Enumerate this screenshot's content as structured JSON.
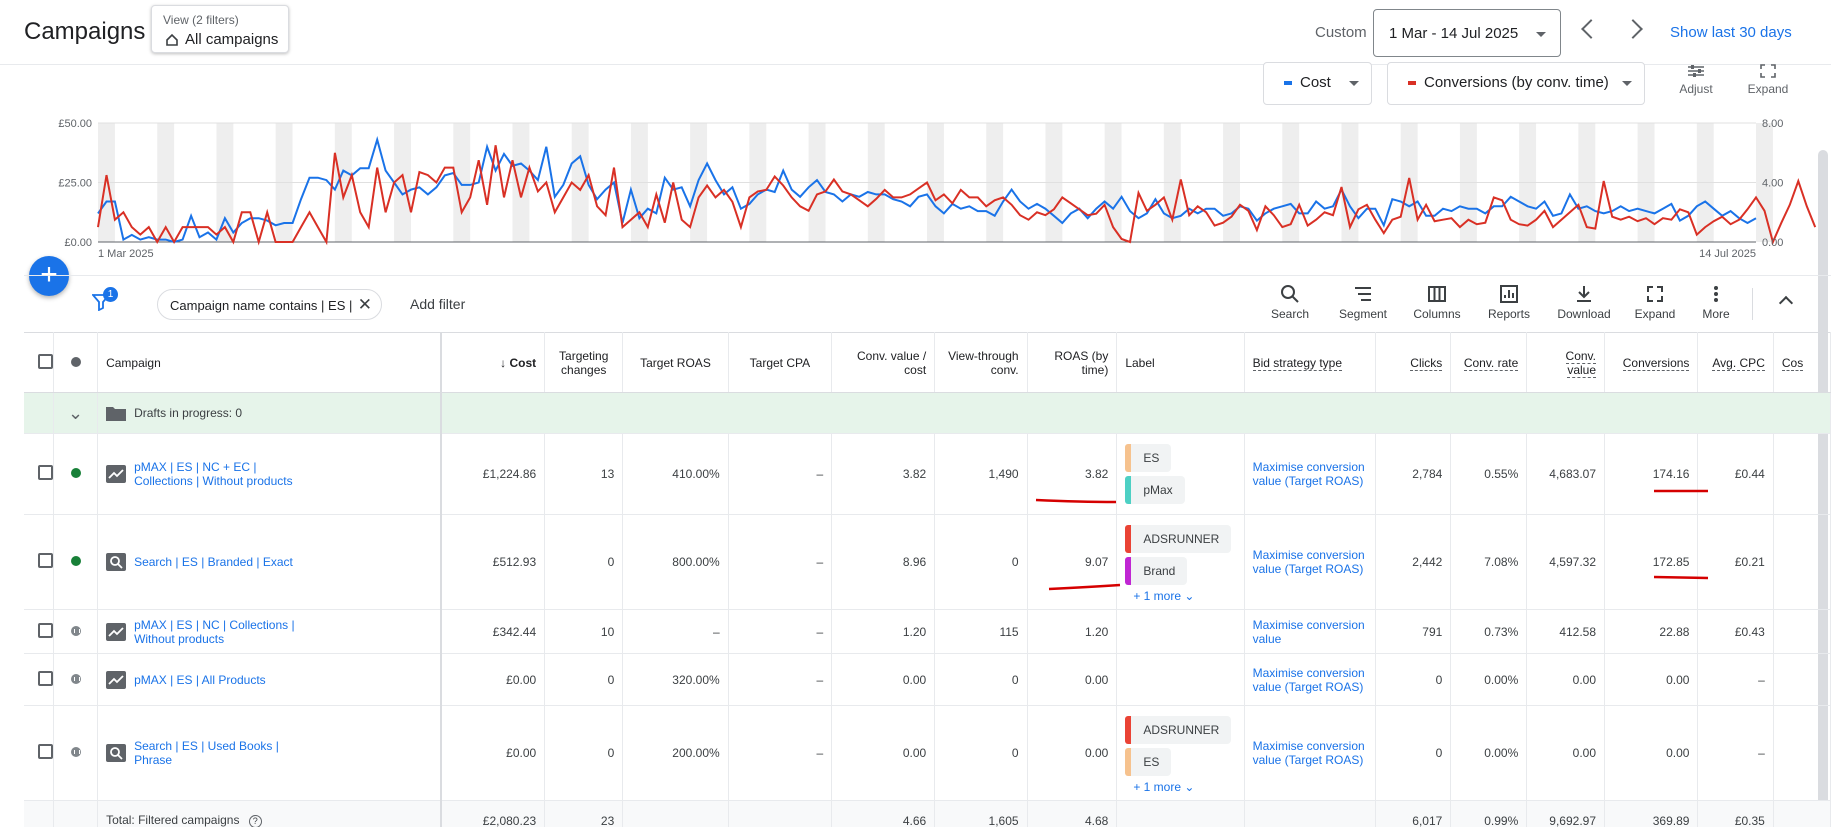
{
  "header": {
    "title": "Campaigns",
    "view_line1": "View (2 filters)",
    "view_line2": "All campaigns",
    "custom_label": "Custom",
    "date_range": "1 Mar - 14 Jul 2025",
    "show_last": "Show last 30 days"
  },
  "chart_controls": {
    "metric1": "Cost",
    "metric1_color": "#1a73e8",
    "metric2": "Conversions (by conv. time)",
    "metric2_color": "#d93025",
    "adjust": "Adjust",
    "expand": "Expand"
  },
  "chart_data": {
    "type": "line",
    "x_start": "1 Mar 2025",
    "x_end": "14 Jul 2025",
    "left_ticks": [
      "£50.00",
      "£25.00",
      "£0.00"
    ],
    "right_ticks": [
      "8.00",
      "4.00",
      "0.00"
    ],
    "ylim_left": [
      0,
      50
    ],
    "ylim_right": [
      0,
      8
    ],
    "series": [
      {
        "name": "Cost",
        "color": "#1a73e8",
        "axis": "left",
        "values": [
          12,
          17,
          17,
          1,
          3,
          1,
          2,
          1,
          1,
          0,
          1,
          11,
          2,
          4,
          1,
          10,
          4,
          8,
          10,
          10,
          9,
          7,
          8,
          8,
          18,
          27,
          27,
          26,
          22,
          30,
          28,
          31,
          31,
          43,
          30,
          25,
          20,
          22,
          23,
          20,
          23,
          28,
          29,
          24,
          24,
          25,
          40,
          30,
          37,
          32,
          33,
          30,
          26,
          40,
          19,
          24,
          33,
          36,
          24,
          18,
          22,
          25,
          8,
          22,
          10,
          14,
          12,
          27,
          22,
          23,
          15,
          26,
          33,
          26,
          20,
          23,
          14,
          16,
          20,
          22,
          21,
          30,
          22,
          19,
          23,
          26,
          21,
          20,
          17,
          20,
          19,
          21,
          20,
          20,
          18,
          17,
          15,
          19,
          20,
          15,
          12,
          16,
          14,
          15,
          13,
          13,
          11,
          17,
          22,
          17,
          14,
          16,
          14,
          11,
          8,
          12,
          14,
          10,
          14,
          17,
          14,
          19,
          13,
          10,
          12,
          18,
          12,
          10,
          11,
          14,
          12,
          14,
          14,
          11,
          12,
          15,
          14,
          9,
          12,
          14,
          15,
          16,
          12,
          12,
          17,
          14,
          15,
          22,
          15,
          10,
          14,
          14,
          7,
          18,
          17,
          15,
          17,
          11,
          11,
          14,
          13,
          15,
          14,
          14,
          12,
          15,
          15,
          19,
          17,
          15,
          14,
          17,
          11,
          12,
          20,
          14,
          15,
          13,
          12,
          13,
          15,
          13,
          14,
          13,
          12,
          14,
          16,
          9,
          11,
          15,
          17,
          14,
          11,
          13,
          10,
          8,
          10
        ]
      },
      {
        "name": "Conversions (by conv. time)",
        "color": "#d93025",
        "axis": "right",
        "values": [
          1,
          4.5,
          1.5,
          2,
          1,
          0.5,
          1,
          0,
          1,
          0,
          1,
          1,
          1,
          1,
          0.5,
          1,
          0,
          2,
          2,
          0,
          2,
          0,
          0,
          0,
          1,
          2,
          1,
          0,
          6,
          3,
          4.5,
          2,
          1,
          5,
          2,
          4,
          4.5,
          2,
          4.7,
          4.5,
          4,
          5,
          5,
          2,
          3,
          5.5,
          2.5,
          6.5,
          3,
          5.5,
          3,
          5,
          3.4,
          4,
          2,
          3,
          4,
          3.5,
          4.5,
          2.4,
          1.8,
          5,
          1,
          1.5,
          2,
          1,
          3.2,
          1.3,
          4,
          1.5,
          1,
          3,
          3.8,
          3,
          3.5,
          2.7,
          1,
          3,
          3.4,
          3.5,
          4.4,
          3.8,
          3,
          2.4,
          2.1,
          3.2,
          3.4,
          4.2,
          3.4,
          3.2,
          2.8,
          2.4,
          2.9,
          3.5,
          3,
          3,
          3.2,
          3.6,
          4,
          2.8,
          3.2,
          2.6,
          3.5,
          3,
          3,
          2.4,
          2.8,
          3,
          2.5,
          1.8,
          1.5,
          2,
          1.8,
          2.2,
          3,
          2.6,
          2.2,
          1.8,
          1.9,
          2.5,
          1,
          0.2,
          0,
          3.3,
          2.1,
          2.5,
          3,
          1.5,
          4.2,
          1.8,
          2.4,
          2,
          1.1,
          1.3,
          1.7,
          2.5,
          2.1,
          0.8,
          2.4,
          1.8,
          1,
          1.2,
          2.5,
          1.1,
          1.5,
          2,
          1.8,
          3.7,
          1,
          2.2,
          2.5,
          1.5,
          0.6,
          1.5,
          1.7,
          4.3,
          1.5,
          2.5,
          1.4,
          1.5,
          1.6,
          1,
          1.5,
          1.2,
          1.3,
          3,
          2.8,
          1.5,
          1.2,
          1.1,
          1.5,
          2.1,
          1,
          1.5,
          2,
          2.5,
          1,
          0.9,
          4.1,
          1.7,
          1.5,
          1.7,
          1.4,
          1.6,
          1.2,
          1.6,
          1.5,
          2.2,
          2,
          0.5,
          1,
          1.4,
          1.7,
          1.2,
          1.5,
          2.2,
          3,
          2.1,
          0,
          1.3,
          2.5,
          4.1,
          2.4,
          1
        ]
      }
    ]
  },
  "filter": {
    "badge": "1",
    "chip_text": "Campaign name contains | ES |",
    "add_filter": "Add filter"
  },
  "toolbar": [
    "Search",
    "Segment",
    "Columns",
    "Reports",
    "Download",
    "Expand",
    "More"
  ],
  "table": {
    "headers": {
      "campaign": "Campaign",
      "cost": "Cost",
      "targeting": "Targeting changes",
      "target_roas": "Target ROAS",
      "target_cpa": "Target CPA",
      "conv_value_cost": "Conv. value / cost",
      "view_through": "View-through conv.",
      "roas": "ROAS (by time)",
      "label": "Label",
      "bid_strategy": "Bid strategy type",
      "clicks": "Clicks",
      "conv_rate": "Conv. rate",
      "conv_value": "Conv. value",
      "conversions": "Conversions",
      "avg_cpc": "Avg. CPC",
      "cost_partial": "Cos"
    },
    "drafts": "Drafts in progress: 0",
    "rows": [
      {
        "status": "active",
        "type": "pmax",
        "name": "pMAX | ES | NC + EC | Collections | Without products",
        "cost": "£1,224.86",
        "targeting": "13",
        "target_roas": "410.00%",
        "target_cpa": "–",
        "cvc": "3.82",
        "vtc": "1,490",
        "roas": "3.82",
        "labels": [
          {
            "name": "ES",
            "color": "#f6c28e"
          },
          {
            "name": "pMax",
            "color": "#4dd0c4"
          }
        ],
        "more": "",
        "bid": "Maximise conversion value (Target ROAS)",
        "clicks": "2,784",
        "conv_rate": "0.55%",
        "conv_value": "4,683.07",
        "conversions": "174.16",
        "avg_cpc": "£0.44"
      },
      {
        "status": "active",
        "type": "search",
        "name": "Search | ES | Branded | Exact",
        "cost": "£512.93",
        "targeting": "0",
        "target_roas": "800.00%",
        "target_cpa": "–",
        "cvc": "8.96",
        "vtc": "0",
        "roas": "9.07",
        "labels": [
          {
            "name": "ADSRUNNER",
            "color": "#ea4335"
          },
          {
            "name": "Brand",
            "color": "#c026d3"
          }
        ],
        "more": "+ 1 more",
        "bid": "Maximise conversion value (Target ROAS)",
        "clicks": "2,442",
        "conv_rate": "7.08%",
        "conv_value": "4,597.32",
        "conversions": "172.85",
        "avg_cpc": "£0.21"
      },
      {
        "status": "paused",
        "type": "pmax",
        "name": "pMAX | ES | NC | Collections | Without products",
        "cost": "£342.44",
        "targeting": "10",
        "target_roas": "–",
        "target_cpa": "–",
        "cvc": "1.20",
        "vtc": "115",
        "roas": "1.20",
        "labels": [],
        "more": "",
        "bid": "Maximise conversion value",
        "clicks": "791",
        "conv_rate": "0.73%",
        "conv_value": "412.58",
        "conversions": "22.88",
        "avg_cpc": "£0.43"
      },
      {
        "status": "paused",
        "type": "pmax",
        "name": "pMAX | ES | All Products",
        "cost": "£0.00",
        "targeting": "0",
        "target_roas": "320.00%",
        "target_cpa": "–",
        "cvc": "0.00",
        "vtc": "0",
        "roas": "0.00",
        "labels": [],
        "more": "",
        "bid": "Maximise conversion value (Target ROAS)",
        "clicks": "0",
        "conv_rate": "0.00%",
        "conv_value": "0.00",
        "conversions": "0.00",
        "avg_cpc": "–"
      },
      {
        "status": "paused",
        "type": "search",
        "name": "Search | ES | Used Books | Phrase",
        "cost": "£0.00",
        "targeting": "0",
        "target_roas": "200.00%",
        "target_cpa": "–",
        "cvc": "0.00",
        "vtc": "0",
        "roas": "0.00",
        "labels": [
          {
            "name": "ADSRUNNER",
            "color": "#ea4335"
          },
          {
            "name": "ES",
            "color": "#f6c28e"
          }
        ],
        "more": "+ 1 more",
        "bid": "Maximise conversion value (Target ROAS)",
        "clicks": "0",
        "conv_rate": "0.00%",
        "conv_value": "0.00",
        "conversions": "0.00",
        "avg_cpc": "–"
      }
    ],
    "total": {
      "label": "Total: Filtered campaigns",
      "cost": "£2,080.23",
      "targeting": "23",
      "cvc": "4.66",
      "vtc": "1,605",
      "roas": "4.68",
      "clicks": "6,017",
      "conv_rate": "0.99%",
      "conv_value": "9,692.97",
      "conversions": "369.89",
      "avg_cpc": "£0.35"
    }
  }
}
